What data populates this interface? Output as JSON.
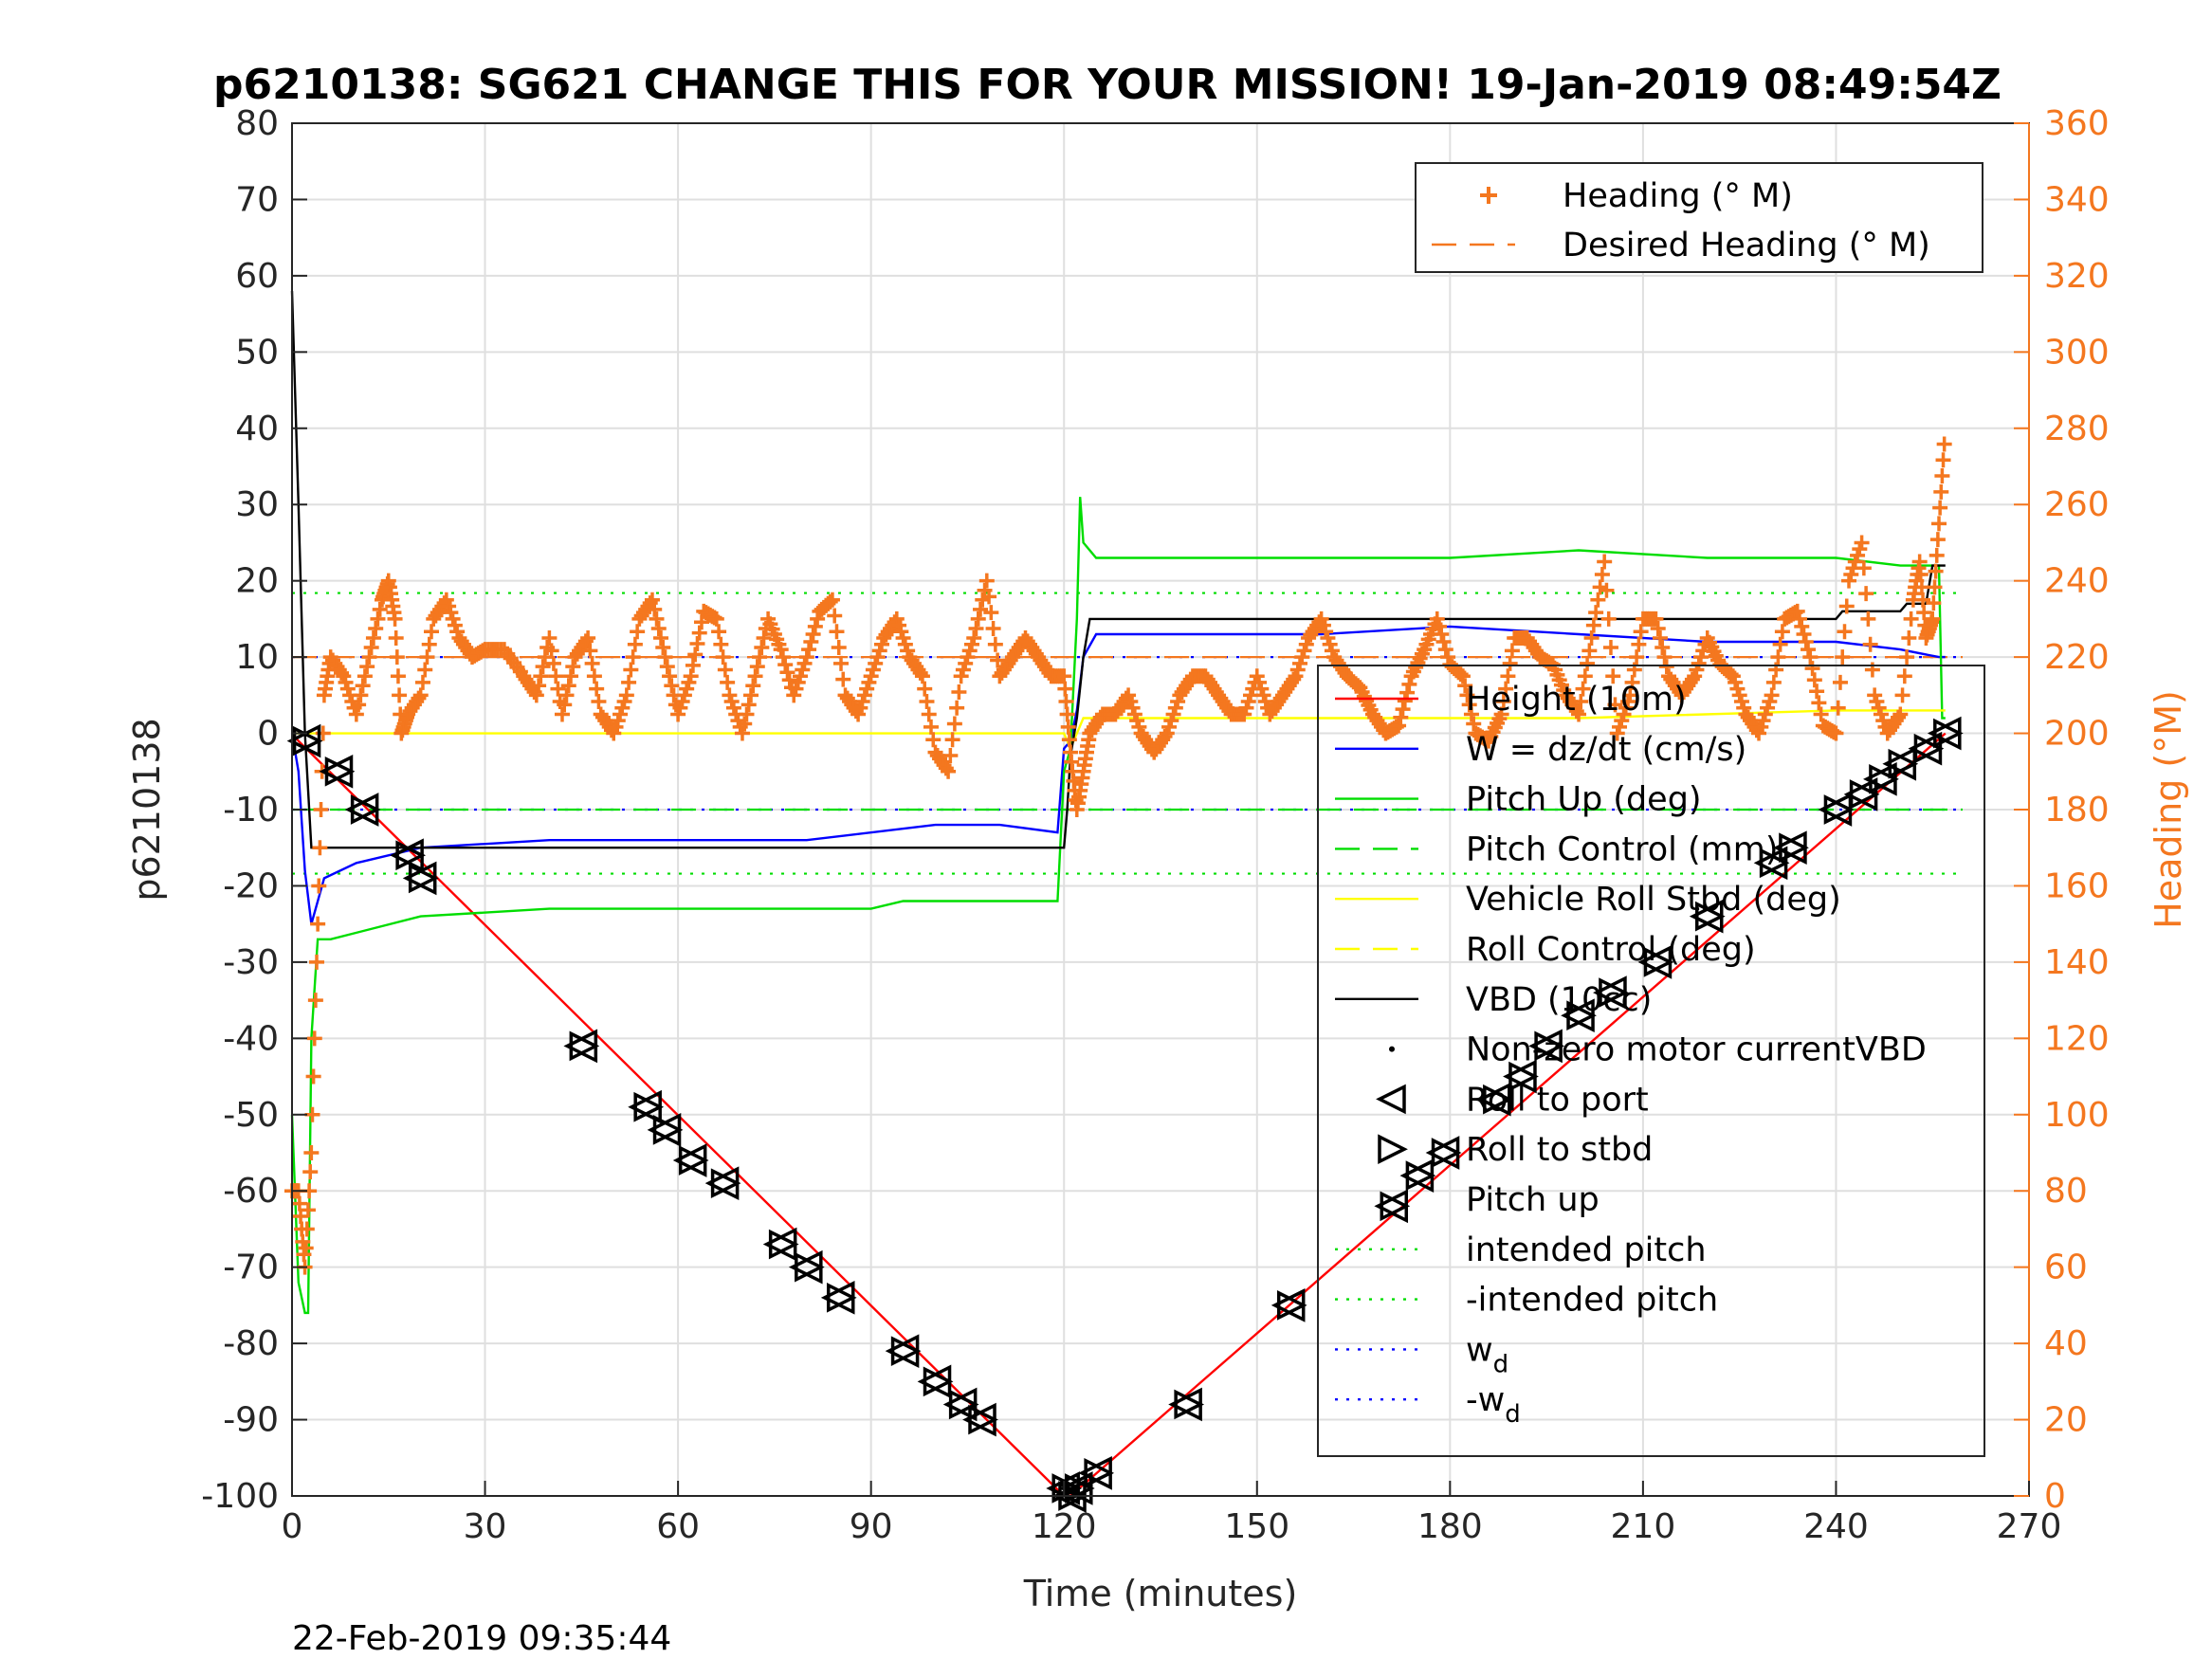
{
  "chart_data": {
    "type": "line",
    "title": "p6210138: SG621 CHANGE THIS FOR YOUR MISSION! 19-Jan-2019 08:49:54Z",
    "xlabel": "Time (minutes)",
    "ylabel_left": "p6210138",
    "ylabel_right": "Heading (°M)",
    "xlim": [
      0,
      270
    ],
    "ylim_left": [
      -100,
      80
    ],
    "ylim_right": [
      0,
      360
    ],
    "x_ticks": [
      "0",
      "30",
      "60",
      "90",
      "120",
      "150",
      "180",
      "210",
      "240",
      "270"
    ],
    "y_ticks_left": [
      "-100",
      "-90",
      "-80",
      "-70",
      "-60",
      "-50",
      "-40",
      "-30",
      "-20",
      "-10",
      "0",
      "10",
      "20",
      "30",
      "40",
      "50",
      "60",
      "70",
      "80"
    ],
    "y_ticks_right": [
      "0",
      "20",
      "40",
      "60",
      "80",
      "100",
      "120",
      "140",
      "160",
      "180",
      "200",
      "220",
      "240",
      "260",
      "280",
      "300",
      "320",
      "340",
      "360"
    ],
    "grid": true,
    "timestamp": "22-Feb-2019 09:35:44",
    "colors": {
      "height": "#FF0000",
      "w": "#0000FF",
      "pitch": "#00DD00",
      "roll": "#FFFF00",
      "vbd": "#000000",
      "heading": "#F4771F"
    },
    "legend_top": [
      {
        "label": "Heading (° M)",
        "style": "plus",
        "color": "#F4771F"
      },
      {
        "label": "Desired Heading (° M)",
        "style": "dashed",
        "color": "#F4771F"
      }
    ],
    "legend_bottom": [
      {
        "label": "Height (10m)",
        "style": "solid",
        "color": "#FF0000"
      },
      {
        "label": "W = dz/dt (cm/s)",
        "style": "solid",
        "color": "#0000FF"
      },
      {
        "label": "Pitch Up (deg)",
        "style": "solid",
        "color": "#00DD00"
      },
      {
        "label": "Pitch Control (mm)",
        "style": "dashed",
        "color": "#00DD00"
      },
      {
        "label": "Vehicle Roll Stbd (deg)",
        "style": "solid",
        "color": "#FFFF00"
      },
      {
        "label": "Roll Control (deg)",
        "style": "dashed",
        "color": "#FFFF00"
      },
      {
        "label": "VBD (10cc)",
        "style": "solid",
        "color": "#000000"
      },
      {
        "label": "Non-zero motor currentVBD",
        "style": "dot",
        "color": "#000000"
      },
      {
        "label": "Roll to port",
        "style": "tri-left",
        "color": "#000000"
      },
      {
        "label": "Roll to stbd",
        "style": "tri-right",
        "color": "#000000"
      },
      {
        "label": "Pitch up",
        "style": "none",
        "color": "#000000"
      },
      {
        "label": "intended pitch",
        "style": "dotted",
        "color": "#00DD00"
      },
      {
        "label": "-intended pitch",
        "style": "dotted",
        "color": "#00DD00"
      },
      {
        "label": "w",
        "sub": "d",
        "style": "dotted",
        "color": "#0000FF"
      },
      {
        "label": "-w",
        "sub": "d",
        "style": "dotted",
        "color": "#0000FF"
      }
    ],
    "series": [
      {
        "name": "Height (10m)",
        "x": [
          0,
          1,
          120,
          121,
          257
        ],
        "y": [
          0,
          -1,
          -100,
          -100,
          0
        ]
      },
      {
        "name": "W = dz/dt (cm/s)",
        "x": [
          0,
          1,
          2,
          3,
          5,
          10,
          20,
          40,
          60,
          80,
          100,
          110,
          119,
          120,
          121,
          122,
          123,
          125,
          140,
          160,
          180,
          200,
          220,
          240,
          250,
          256,
          257
        ],
        "y": [
          0,
          -5,
          -18,
          -25,
          -19,
          -17,
          -15,
          -14,
          -14,
          -14,
          -12,
          -12,
          -13,
          -2,
          -1,
          3,
          10,
          13,
          13,
          13,
          14,
          13,
          12,
          12,
          11,
          10,
          10
        ]
      },
      {
        "name": "Pitch Up (deg)",
        "x": [
          0,
          1,
          2,
          2.5,
          3,
          4,
          6,
          20,
          40,
          60,
          90,
          95,
          110,
          119,
          120,
          121,
          122,
          122.5,
          123,
          125,
          140,
          180,
          200,
          220,
          240,
          250,
          255,
          256,
          256.5,
          257
        ],
        "y": [
          -50,
          -72,
          -76,
          -76,
          -40,
          -27,
          -27,
          -24,
          -23,
          -23,
          -23,
          -22,
          -22,
          -22,
          -5,
          -2,
          15,
          31,
          25,
          23,
          23,
          23,
          24,
          23,
          23,
          22,
          22,
          22,
          2,
          2
        ]
      },
      {
        "name": "Vehicle Roll Stbd (deg)",
        "x": [
          0,
          3,
          6,
          20,
          60,
          100,
          120,
          121,
          123,
          140,
          180,
          200,
          240,
          255,
          257
        ],
        "y": [
          0,
          0,
          0,
          0,
          0,
          0,
          0,
          -2,
          2,
          2,
          2,
          2,
          3,
          3,
          3
        ]
      },
      {
        "name": "VBD (10cc)",
        "x": [
          0,
          1,
          2,
          3,
          4,
          119,
          120,
          120.5,
          121,
          122,
          123,
          124,
          240,
          241,
          250,
          251,
          254,
          255,
          257
        ],
        "y": [
          58,
          30,
          0,
          -15,
          -15,
          -15,
          -15,
          -10,
          -3,
          2,
          10,
          15,
          15,
          16,
          16,
          17,
          17,
          22,
          22
        ]
      },
      {
        "name": "Heading (° M)",
        "axis": "right",
        "x": [
          0,
          1,
          2,
          3,
          4,
          5,
          6,
          8,
          10,
          12,
          14,
          15,
          16,
          17,
          18,
          20,
          22,
          24,
          26,
          28,
          30,
          33,
          36,
          38,
          40,
          42,
          44,
          46,
          48,
          50,
          52,
          54,
          56,
          58,
          60,
          62,
          64,
          66,
          68,
          70,
          72,
          74,
          76,
          78,
          80,
          82,
          84,
          86,
          88,
          90,
          92,
          94,
          96,
          98,
          100,
          102,
          104,
          106,
          108,
          110,
          112,
          114,
          116,
          118,
          120,
          121,
          122,
          123,
          124,
          126,
          128,
          130,
          132,
          134,
          136,
          138,
          140,
          142,
          144,
          146,
          148,
          150,
          152,
          154,
          156,
          158,
          160,
          162,
          164,
          166,
          168,
          170,
          172,
          174,
          176,
          178,
          180,
          182,
          184,
          186,
          188,
          190,
          192,
          194,
          196,
          198,
          200,
          202,
          204,
          206,
          208,
          210,
          212,
          214,
          216,
          218,
          220,
          222,
          224,
          226,
          228,
          230,
          232,
          234,
          236,
          238,
          240,
          242,
          244,
          246,
          248,
          250,
          252,
          253,
          254,
          255,
          256,
          257
        ],
        "y": [
          80,
          80,
          60,
          90,
          150,
          210,
          220,
          215,
          205,
          220,
          235,
          240,
          230,
          200,
          205,
          210,
          230,
          235,
          225,
          220,
          222,
          222,
          215,
          210,
          225,
          205,
          220,
          225,
          205,
          200,
          210,
          230,
          235,
          220,
          205,
          215,
          232,
          230,
          210,
          200,
          215,
          230,
          222,
          210,
          220,
          232,
          235,
          210,
          205,
          215,
          225,
          230,
          220,
          215,
          195,
          190,
          215,
          225,
          240,
          215,
          220,
          225,
          220,
          215,
          215,
          195,
          180,
          190,
          200,
          205,
          205,
          210,
          200,
          195,
          200,
          210,
          215,
          215,
          210,
          205,
          205,
          215,
          205,
          210,
          215,
          225,
          230,
          220,
          215,
          212,
          205,
          200,
          202,
          215,
          222,
          230,
          218,
          215,
          200,
          198,
          205,
          225,
          225,
          220,
          218,
          210,
          205,
          225,
          245,
          200,
          210,
          230,
          230,
          215,
          210,
          215,
          225,
          218,
          215,
          205,
          200,
          210,
          230,
          232,
          220,
          202,
          200,
          240,
          250,
          210,
          200,
          205,
          235,
          245,
          225,
          230,
          255,
          280
        ]
      },
      {
        "name": "Roll to port / Roll to stbd markers",
        "x": [
          2,
          7,
          11,
          18,
          20,
          45,
          55,
          58,
          62,
          67,
          76,
          80,
          85,
          95,
          100,
          104,
          107,
          120,
          121,
          122,
          125,
          139,
          155,
          171,
          175,
          179,
          187,
          191,
          195,
          200,
          205,
          212,
          220,
          230,
          233,
          240,
          244,
          247,
          250,
          254,
          257
        ],
        "y": [
          -1,
          -5,
          -10,
          -16,
          -19,
          -41,
          -49,
          -52,
          -56,
          -59,
          -67,
          -70,
          -74,
          -81,
          -85,
          -88,
          -90,
          -99,
          -100,
          -99,
          -97,
          -88,
          -75,
          -62,
          -58,
          -55,
          -48,
          -45,
          -41,
          -37,
          -34,
          -30,
          -24,
          -17,
          -15,
          -10,
          -8,
          -6,
          -4,
          -2,
          0
        ]
      }
    ],
    "reference_lines": [
      {
        "name": "intended pitch",
        "y": 18.4
      },
      {
        "name": "-intended pitch",
        "y": -18.4
      },
      {
        "name": "w_d",
        "y": 10
      },
      {
        "name": "-w_d",
        "y": -10
      },
      {
        "name": "Pitch Control (mm)",
        "y": -10
      },
      {
        "name": "Desired Heading (° M)",
        "axis": "right",
        "y": 220
      }
    ]
  }
}
